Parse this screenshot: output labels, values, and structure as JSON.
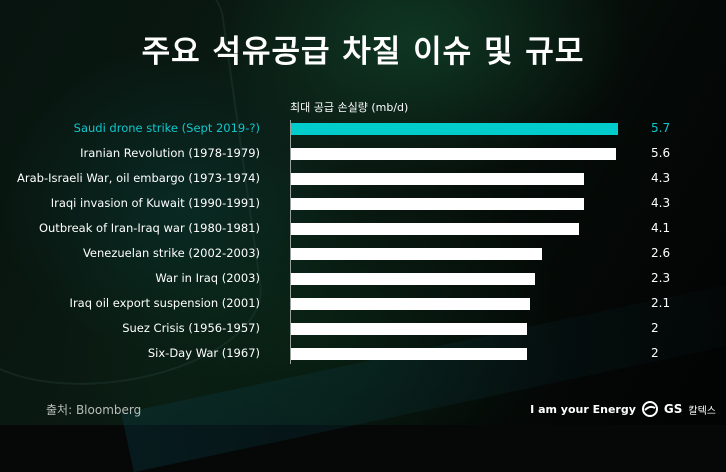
{
  "header": {
    "title": "주요 석유공급 차질 이슈 및 규모"
  },
  "chart": {
    "axis_title": "최대 공급 손실량 (mb/d)",
    "highlight_color": "#00cccc",
    "bar_color": "#ffffff"
  },
  "rows": [
    {
      "label": "Saudi drone strike (Sept 2019-?)",
      "value": "5.7"
    },
    {
      "label": "Iranian Revolution (1978-1979)",
      "value": "5.6"
    },
    {
      "label": "Arab-Israeli War, oil embargo (1973-1974)",
      "value": "4.3"
    },
    {
      "label": "Iraqi invasion of Kuwait (1990-1991)",
      "value": "4.3"
    },
    {
      "label": "Outbreak of Iran-Iraq war (1980-1981)",
      "value": "4.1"
    },
    {
      "label": "Venezuelan strike (2002-2003)",
      "value": "2.6"
    },
    {
      "label": "War in Iraq (2003)",
      "value": "2.3"
    },
    {
      "label": "Iraq oil export suspension (2001)",
      "value": "2.1"
    },
    {
      "label": "Suez Crisis (1956-1957)",
      "value": "2"
    },
    {
      "label": "Six-Day War (1967)",
      "value": "2"
    }
  ],
  "footer": {
    "source": "출처: Bloomberg",
    "slogan": "I am your Energy",
    "brand_name": "GS",
    "brand_korean": "칼텍스"
  },
  "chart_data": {
    "type": "bar",
    "orientation": "horizontal",
    "title": "주요 석유공급 차질 이슈 및 규모",
    "xlabel": "최대 공급 손실량 (mb/d)",
    "ylabel": "",
    "categories": [
      "Saudi drone strike (Sept 2019-?)",
      "Iranian Revolution (1978-1979)",
      "Arab-Israeli War, oil embargo (1973-1974)",
      "Iraqi invasion of Kuwait (1990-1991)",
      "Outbreak of Iran-Iraq war (1980-1981)",
      "Venezuelan strike (2002-2003)",
      "War in Iraq (2003)",
      "Iraq oil export suspension (2001)",
      "Suez Crisis (1956-1957)",
      "Six-Day War (1967)"
    ],
    "values": [
      5.7,
      5.6,
      4.3,
      4.3,
      4.1,
      2.6,
      2.3,
      2.1,
      2,
      2
    ],
    "highlighted": [
      "Saudi drone strike (Sept 2019-?)"
    ],
    "grid": false,
    "legend": false,
    "data_labels": true,
    "source": "Bloomberg"
  }
}
